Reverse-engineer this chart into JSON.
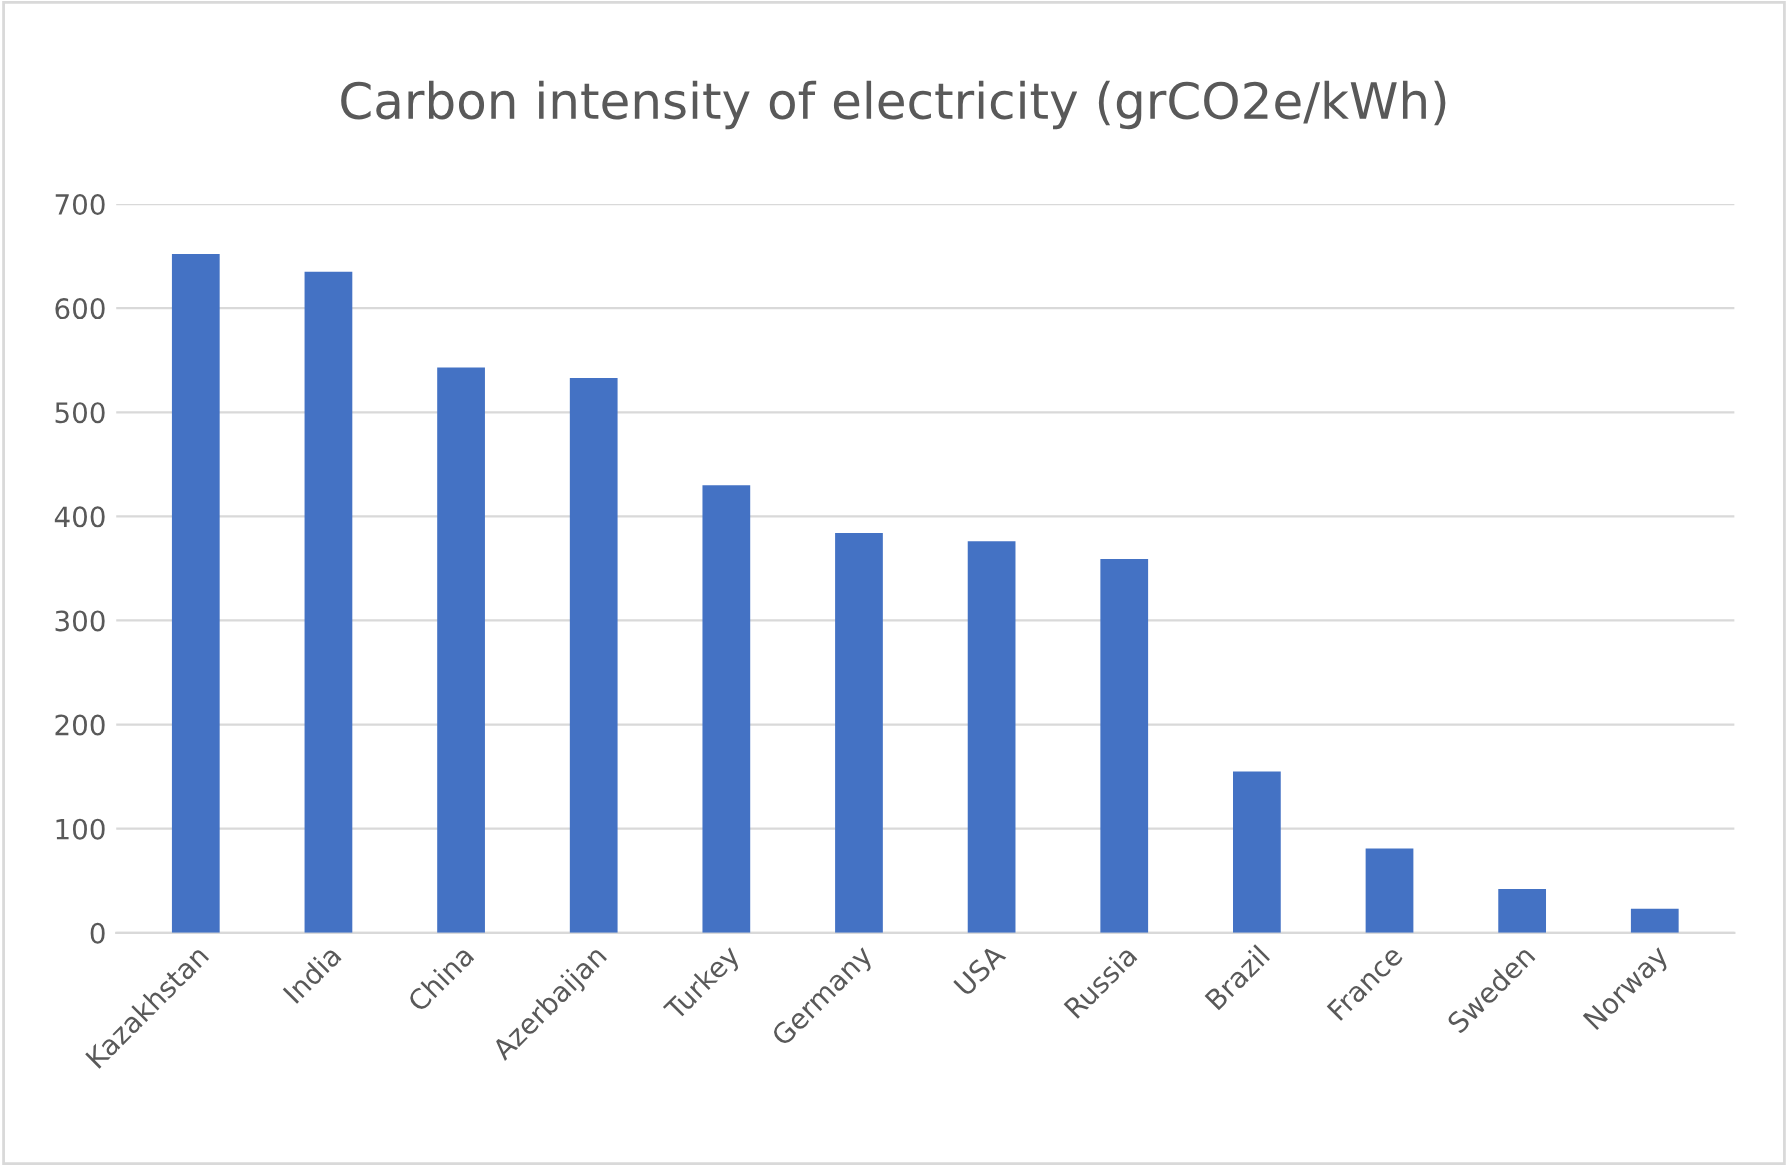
{
  "chart_data": {
    "type": "bar",
    "title": "Carbon intensity of electricity (grCO2e/kWh)",
    "categories": [
      "Kazakhstan",
      "India",
      "China",
      "Azerbaijan",
      "Turkey",
      "Germany",
      "USA",
      "Russia",
      "Brazil",
      "France",
      "Sweden",
      "Norway"
    ],
    "values": [
      652,
      635,
      543,
      533,
      430,
      384,
      376,
      359,
      155,
      81,
      42,
      23
    ],
    "color": "#4472c4",
    "ylim": [
      0,
      700
    ],
    "yticks": [
      0,
      100,
      200,
      300,
      400,
      500,
      600,
      700
    ],
    "grid": "y",
    "legend": false
  }
}
